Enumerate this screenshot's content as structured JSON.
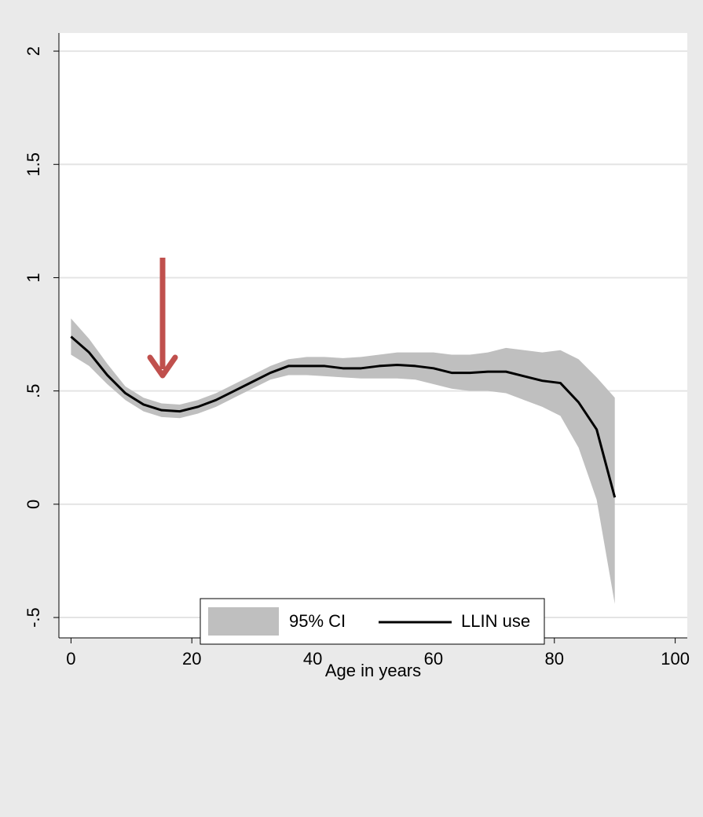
{
  "chart_data": {
    "type": "line",
    "x_label": "Age in years",
    "x": [
      0,
      3,
      6,
      9,
      12,
      15,
      18,
      21,
      24,
      27,
      30,
      33,
      36,
      39,
      42,
      45,
      48,
      51,
      54,
      57,
      60,
      63,
      66,
      69,
      72,
      75,
      78,
      81,
      84,
      87,
      90
    ],
    "series": [
      {
        "name": "95% CI",
        "color": "#bfbfbf",
        "upper": [
          0.82,
          0.73,
          0.62,
          0.52,
          0.47,
          0.445,
          0.44,
          0.46,
          0.49,
          0.53,
          0.57,
          0.61,
          0.64,
          0.65,
          0.65,
          0.645,
          0.65,
          0.66,
          0.67,
          0.67,
          0.67,
          0.66,
          0.66,
          0.67,
          0.69,
          0.68,
          0.67,
          0.68,
          0.64,
          0.56,
          0.47
        ],
        "lower": [
          0.66,
          0.61,
          0.53,
          0.46,
          0.41,
          0.385,
          0.38,
          0.4,
          0.43,
          0.47,
          0.51,
          0.55,
          0.57,
          0.57,
          0.565,
          0.56,
          0.555,
          0.555,
          0.555,
          0.55,
          0.53,
          0.51,
          0.5,
          0.5,
          0.49,
          0.46,
          0.43,
          0.39,
          0.25,
          0.02,
          -0.44
        ]
      },
      {
        "name": "LLIN use",
        "color": "#000000",
        "values": [
          0.74,
          0.67,
          0.57,
          0.49,
          0.44,
          0.415,
          0.41,
          0.43,
          0.46,
          0.5,
          0.54,
          0.58,
          0.61,
          0.61,
          0.61,
          0.6,
          0.6,
          0.61,
          0.615,
          0.61,
          0.6,
          0.58,
          0.58,
          0.585,
          0.585,
          0.565,
          0.545,
          0.535,
          0.45,
          0.33,
          0.03
        ]
      }
    ],
    "xlim": [
      -2,
      102
    ],
    "xticks": [
      0,
      20,
      40,
      60,
      80,
      100
    ],
    "ylim": [
      -0.59,
      2.08
    ],
    "yticks": [
      {
        "value": -0.5,
        "label": "-.5"
      },
      0,
      {
        "value": 0.5,
        "label": ".5"
      },
      1,
      1.5,
      2
    ],
    "grid": true
  }
}
